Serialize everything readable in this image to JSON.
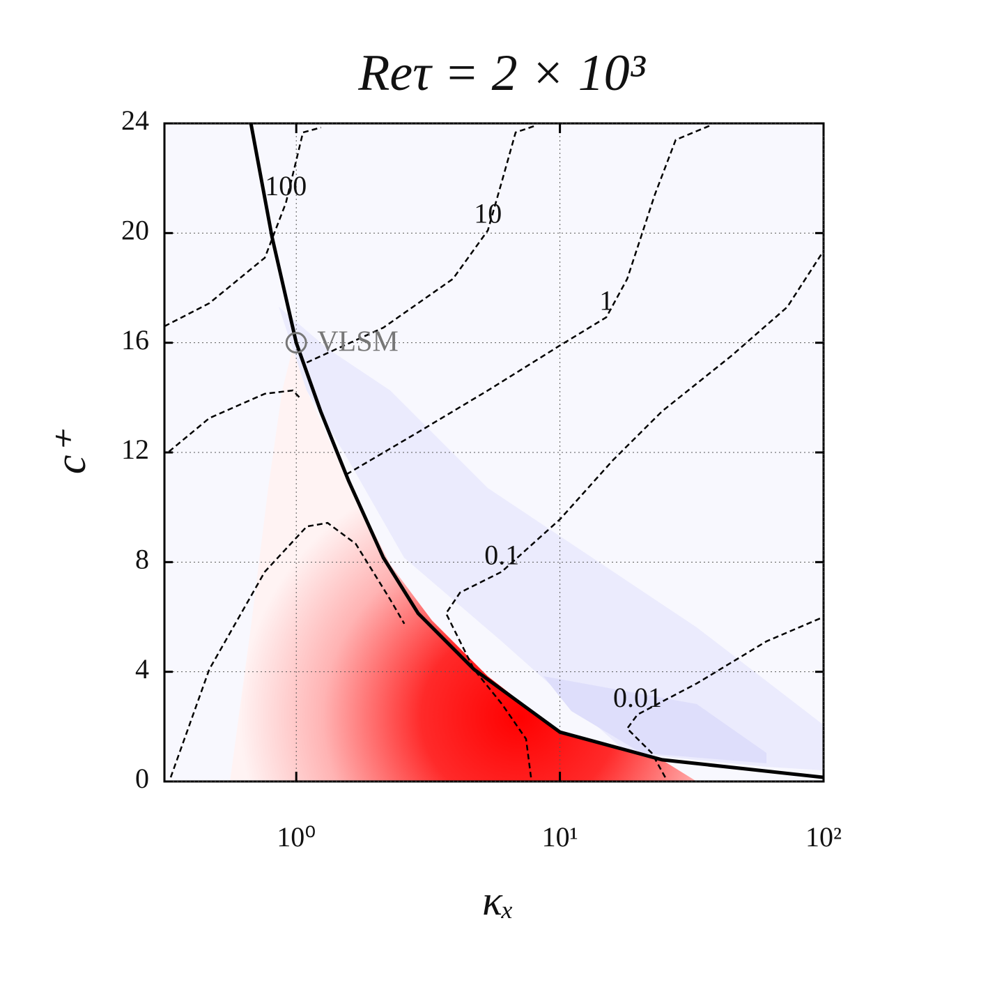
{
  "chart_data": {
    "type": "contour",
    "title": "Reτ = 2 × 10³",
    "x_label": "κₓ",
    "y_label": "c⁺",
    "x_scale": "log",
    "xlim": [
      0.3162,
      100
    ],
    "xticks": [
      {
        "value": 1,
        "label": "10⁰"
      },
      {
        "value": 10,
        "label": "10¹"
      },
      {
        "value": 100,
        "label": "10²"
      }
    ],
    "ylim": [
      0,
      24
    ],
    "yticks": [
      0,
      4,
      8,
      12,
      16,
      20,
      24
    ],
    "grid": true,
    "curve": {
      "color": "#000000",
      "x": [
        0.673,
        0.809,
        1.0,
        1.237,
        1.58,
        2.14,
        2.9,
        4.72,
        10,
        24.4,
        100
      ],
      "y": [
        24,
        19.86,
        16.0,
        13.5,
        10.96,
        8.16,
        6.13,
        4.09,
        1.8,
        0.79,
        0.15
      ]
    },
    "contours": [
      {
        "label": "100",
        "x": [
          0.316,
          0.468,
          0.76,
          0.913,
          1.0,
          1.06,
          1.24
        ],
        "y": [
          16.6,
          17.44,
          19.1,
          21.1,
          22.65,
          23.67,
          23.85
        ]
      },
      {
        "label": "10",
        "x": [
          1.096,
          2.14,
          3.93,
          5.33,
          6.03,
          6.79,
          8.14
        ],
        "y": [
          15.28,
          16.55,
          18.33,
          20.1,
          21.9,
          23.67,
          23.93
        ]
      },
      {
        "label": "1",
        "x": [
          1.55,
          2.9,
          5.33,
          10,
          15.0,
          18.0,
          22.9,
          27.5,
          37.3
        ],
        "y": [
          11.2,
          12.74,
          14.26,
          15.9,
          16.93,
          18.33,
          21.4,
          23.4,
          23.93
        ]
      },
      {
        "label": "0.1",
        "x": [
          7.77,
          7.44,
          6.03,
          4.72,
          3.7,
          4.18,
          6.02,
          10,
          15.9,
          24.4,
          44.8,
          72.8,
          100
        ],
        "y": [
          0.15,
          1.55,
          2.82,
          4.09,
          6.13,
          6.89,
          7.65,
          9.56,
          11.72,
          13.5,
          15.53,
          17.3,
          19.35
        ]
      },
      {
        "label": "0.01",
        "x": [
          25.1,
          22.3,
          18.0,
          19.7,
          33.1,
          60.7,
          100
        ],
        "y": [
          0.15,
          1.04,
          1.93,
          2.44,
          3.58,
          5.11,
          6.0
        ]
      },
      {
        "x": [
          0.334,
          0.468,
          0.76,
          1.096,
          1.315,
          1.68,
          2.27,
          2.57
        ],
        "y": [
          0.15,
          4.09,
          7.65,
          9.3,
          9.43,
          8.67,
          6.64,
          5.75
        ]
      },
      {
        "x": [
          0.329,
          0.468,
          0.76,
          0.97,
          1.03
        ],
        "y": [
          12.03,
          13.25,
          14.14,
          14.26,
          14.0
        ]
      }
    ],
    "annotations": [
      {
        "text": "VLSM",
        "x": 1,
        "y": 16,
        "color": "#777777"
      }
    ]
  }
}
